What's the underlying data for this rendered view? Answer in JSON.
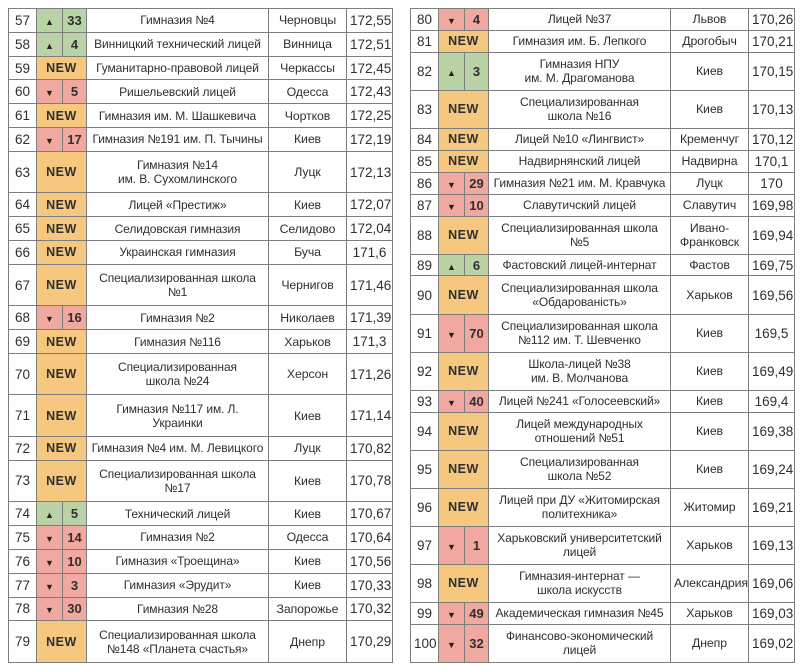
{
  "labels": {
    "new": "NEW"
  },
  "icons": {
    "up": "▲",
    "down": "▼"
  },
  "colors": {
    "up_bg": "#b9d2a6",
    "down_bg": "#f0a8a0",
    "new_bg": "#f6c77e",
    "border": "#7d7d7d",
    "text": "#2f2f2f"
  },
  "tables": [
    {
      "rows": [
        {
          "rank": "57",
          "change": {
            "dir": "up",
            "value": "33"
          },
          "name": "Гимназия №4",
          "city": "Черновцы",
          "score": "172,55"
        },
        {
          "rank": "58",
          "change": {
            "dir": "up",
            "value": "4"
          },
          "name": "Винницкий технический лицей",
          "city": "Винница",
          "score": "172,51"
        },
        {
          "rank": "59",
          "change": {
            "dir": "new"
          },
          "name": "Гуманитарно-правовой лицей",
          "city": "Черкассы",
          "score": "172,45"
        },
        {
          "rank": "60",
          "change": {
            "dir": "down",
            "value": "5"
          },
          "name": "Ришельевский лицей",
          "city": "Одесса",
          "score": "172,43"
        },
        {
          "rank": "61",
          "change": {
            "dir": "new"
          },
          "name": "Гимназия им. М. Шашкевича",
          "city": "Чортков",
          "score": "172,25"
        },
        {
          "rank": "62",
          "change": {
            "dir": "down",
            "value": "17"
          },
          "name": "Гимназия №191 им. П. Тычины",
          "city": "Киев",
          "score": "172,19"
        },
        {
          "rank": "63",
          "change": {
            "dir": "new"
          },
          "name": "Гимназия №14\nим. В. Сухомлинского",
          "city": "Луцк",
          "score": "172,13"
        },
        {
          "rank": "64",
          "change": {
            "dir": "new"
          },
          "name": "Лицей «Престиж»",
          "city": "Киев",
          "score": "172,07"
        },
        {
          "rank": "65",
          "change": {
            "dir": "new"
          },
          "name": "Селидовская гимназия",
          "city": "Селидово",
          "score": "172,04"
        },
        {
          "rank": "66",
          "change": {
            "dir": "new"
          },
          "name": "Украинская гимназия",
          "city": "Буча",
          "score": "171,6"
        },
        {
          "rank": "67",
          "change": {
            "dir": "new"
          },
          "name": "Специализированная школа №1",
          "city": "Чернигов",
          "score": "171,46"
        },
        {
          "rank": "68",
          "change": {
            "dir": "down",
            "value": "16"
          },
          "name": "Гимназия №2",
          "city": "Николаев",
          "score": "171,39"
        },
        {
          "rank": "69",
          "change": {
            "dir": "new"
          },
          "name": "Гимназия №116",
          "city": "Харьков",
          "score": "171,3"
        },
        {
          "rank": "70",
          "change": {
            "dir": "new"
          },
          "name": "Специализированная\nшкола №24",
          "city": "Херсон",
          "score": "171,26"
        },
        {
          "rank": "71",
          "change": {
            "dir": "new"
          },
          "name": "Гимназия №117 им. Л. Украинки",
          "city": "Киев",
          "score": "171,14"
        },
        {
          "rank": "72",
          "change": {
            "dir": "new"
          },
          "name": "Гимназия №4 им. М. Левицкого",
          "city": "Луцк",
          "score": "170,82"
        },
        {
          "rank": "73",
          "change": {
            "dir": "new"
          },
          "name": "Специализированная школа №17",
          "city": "Киев",
          "score": "170,78"
        },
        {
          "rank": "74",
          "change": {
            "dir": "up",
            "value": "5"
          },
          "name": "Технический лицей",
          "city": "Киев",
          "score": "170,67"
        },
        {
          "rank": "75",
          "change": {
            "dir": "down",
            "value": "14"
          },
          "name": "Гимназия №2",
          "city": "Одесса",
          "score": "170,64"
        },
        {
          "rank": "76",
          "change": {
            "dir": "down",
            "value": "10"
          },
          "name": "Гимназия «Троещина»",
          "city": "Киев",
          "score": "170,56"
        },
        {
          "rank": "77",
          "change": {
            "dir": "down",
            "value": "3"
          },
          "name": "Гимназия «Эрудит»",
          "city": "Киев",
          "score": "170,33"
        },
        {
          "rank": "78",
          "change": {
            "dir": "down",
            "value": "30"
          },
          "name": "Гимназия №28",
          "city": "Запорожье",
          "score": "170,32"
        },
        {
          "rank": "79",
          "change": {
            "dir": "new"
          },
          "name": "Специализированная школа\n№148 «Планета счастья»",
          "city": "Днепр",
          "score": "170,29"
        }
      ]
    },
    {
      "rows": [
        {
          "rank": "80",
          "change": {
            "dir": "down",
            "value": "4"
          },
          "name": "Лицей №37",
          "city": "Львов",
          "score": "170,26"
        },
        {
          "rank": "81",
          "change": {
            "dir": "new"
          },
          "name": "Гимназия им. Б. Лепкого",
          "city": "Дрогобыч",
          "score": "170,21"
        },
        {
          "rank": "82",
          "change": {
            "dir": "up",
            "value": "3"
          },
          "name": "Гимназия НПУ\nим. М. Драгоманова",
          "city": "Киев",
          "score": "170,15"
        },
        {
          "rank": "83",
          "change": {
            "dir": "new"
          },
          "name": "Специализированная\nшкола №16",
          "city": "Киев",
          "score": "170,13"
        },
        {
          "rank": "84",
          "change": {
            "dir": "new"
          },
          "name": "Лицей №10 «Лингвист»",
          "city": "Кременчуг",
          "score": "170,12"
        },
        {
          "rank": "85",
          "change": {
            "dir": "new"
          },
          "name": "Надвирнянский лицей",
          "city": "Надвирна",
          "score": "170,1"
        },
        {
          "rank": "86",
          "change": {
            "dir": "down",
            "value": "29"
          },
          "name": "Гимназия №21 им. М. Кравчука",
          "city": "Луцк",
          "score": "170"
        },
        {
          "rank": "87",
          "change": {
            "dir": "down",
            "value": "10"
          },
          "name": "Славутичский лицей",
          "city": "Славутич",
          "score": "169,98"
        },
        {
          "rank": "88",
          "change": {
            "dir": "new"
          },
          "name": "Специализированная школа №5",
          "city": "Ивано-\nФранковск",
          "score": "169,94"
        },
        {
          "rank": "89",
          "change": {
            "dir": "up",
            "value": "6"
          },
          "name": "Фастовский лицей-интернат",
          "city": "Фастов",
          "score": "169,75"
        },
        {
          "rank": "90",
          "change": {
            "dir": "new"
          },
          "name": "Специализированная школа\n«Обдарованість»",
          "city": "Харьков",
          "score": "169,56"
        },
        {
          "rank": "91",
          "change": {
            "dir": "down",
            "value": "70"
          },
          "name": "Специализированная школа\n№112 им. Т. Шевченко",
          "city": "Киев",
          "score": "169,5"
        },
        {
          "rank": "92",
          "change": {
            "dir": "new"
          },
          "name": "Школа-лицей №38\nим. В. Молчанова",
          "city": "Киев",
          "score": "169,49"
        },
        {
          "rank": "93",
          "change": {
            "dir": "down",
            "value": "40"
          },
          "name": "Лицей №241 «Голосеевский»",
          "city": "Киев",
          "score": "169,4"
        },
        {
          "rank": "94",
          "change": {
            "dir": "new"
          },
          "name": "Лицей международных\nотношений №51",
          "city": "Киев",
          "score": "169,38"
        },
        {
          "rank": "95",
          "change": {
            "dir": "new"
          },
          "name": "Специализированная\nшкола №52",
          "city": "Киев",
          "score": "169,24"
        },
        {
          "rank": "96",
          "change": {
            "dir": "new"
          },
          "name": "Лицей при ДУ «Житомирская\nполитехника»",
          "city": "Житомир",
          "score": "169,21"
        },
        {
          "rank": "97",
          "change": {
            "dir": "down",
            "value": "1"
          },
          "name": "Харьковский университетский\nлицей",
          "city": "Харьков",
          "score": "169,13"
        },
        {
          "rank": "98",
          "change": {
            "dir": "new"
          },
          "name": "Гимназия-интернат —\nшкола искусств",
          "city": "Александрия",
          "score": "169,06"
        },
        {
          "rank": "99",
          "change": {
            "dir": "down",
            "value": "49"
          },
          "name": "Академическая гимназия №45",
          "city": "Харьков",
          "score": "169,03"
        },
        {
          "rank": "100",
          "change": {
            "dir": "down",
            "value": "32"
          },
          "name": "Финансово-экономический\nлицей",
          "city": "Днепр",
          "score": "169,02"
        }
      ]
    }
  ]
}
